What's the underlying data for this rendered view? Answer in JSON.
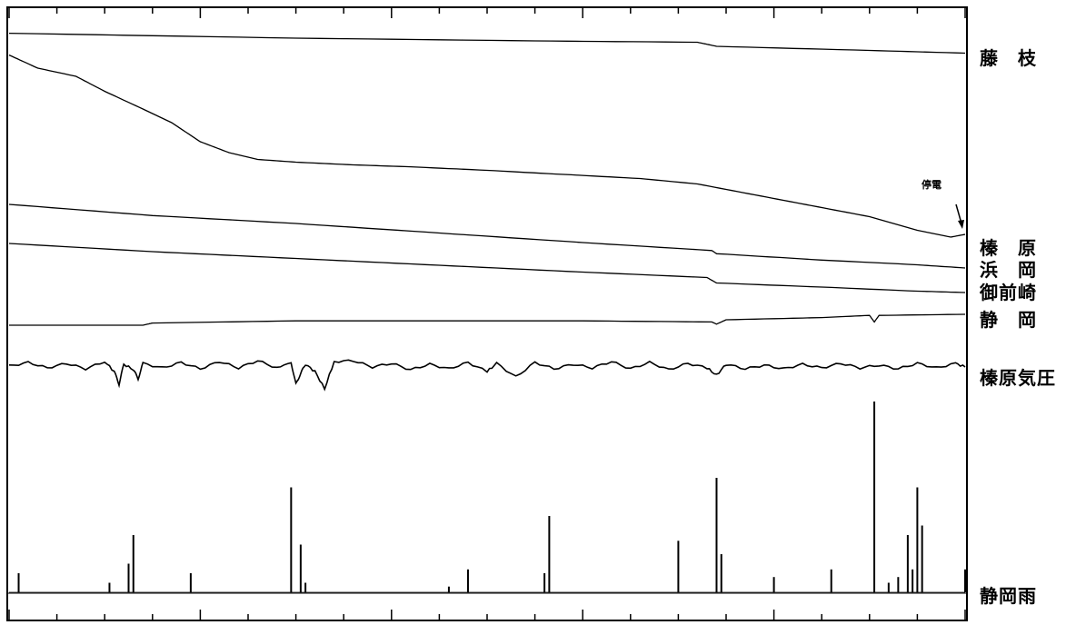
{
  "chart_data": {
    "type": "line",
    "title": "",
    "xlabel": "",
    "ylabel": "",
    "grid": false,
    "series": [
      {
        "name": "藤　枝",
        "kind": "trace",
        "values": [
          [
            0,
            0.02
          ],
          [
            0.3,
            0.2
          ],
          [
            0.55,
            0.3
          ],
          [
            0.72,
            0.35
          ],
          [
            0.74,
            0.5
          ],
          [
            0.9,
            0.65
          ],
          [
            1,
            0.75
          ]
        ]
      },
      {
        "name": "榛　原",
        "kind": "trace",
        "values": [
          [
            0,
            0.02
          ],
          [
            0.03,
            0.5
          ],
          [
            0.07,
            0.8
          ],
          [
            0.1,
            1.35
          ],
          [
            0.14,
            2.0
          ],
          [
            0.17,
            2.5
          ],
          [
            0.2,
            3.2
          ],
          [
            0.23,
            3.6
          ],
          [
            0.26,
            3.85
          ],
          [
            0.3,
            3.95
          ],
          [
            0.36,
            4.05
          ],
          [
            0.42,
            4.12
          ],
          [
            0.5,
            4.25
          ],
          [
            0.58,
            4.4
          ],
          [
            0.66,
            4.55
          ],
          [
            0.72,
            4.75
          ],
          [
            0.78,
            5.15
          ],
          [
            0.84,
            5.55
          ],
          [
            0.9,
            5.95
          ],
          [
            0.95,
            6.45
          ],
          [
            0.985,
            6.7
          ],
          [
            1.0,
            6.6
          ]
        ]
      },
      {
        "name": "浜　岡",
        "kind": "trace",
        "values": [
          [
            0,
            0
          ],
          [
            0.15,
            0.35
          ],
          [
            0.3,
            0.6
          ],
          [
            0.45,
            0.9
          ],
          [
            0.6,
            1.2
          ],
          [
            0.735,
            1.45
          ],
          [
            0.74,
            1.55
          ],
          [
            0.85,
            1.75
          ],
          [
            0.95,
            1.9
          ],
          [
            1,
            2.0
          ]
        ]
      },
      {
        "name": "御前崎",
        "kind": "trace",
        "values": [
          [
            0,
            0
          ],
          [
            0.15,
            0.3
          ],
          [
            0.3,
            0.55
          ],
          [
            0.45,
            0.8
          ],
          [
            0.6,
            1.05
          ],
          [
            0.73,
            1.25
          ],
          [
            0.74,
            1.45
          ],
          [
            0.85,
            1.6
          ],
          [
            0.95,
            1.75
          ],
          [
            1,
            1.8
          ]
        ]
      },
      {
        "name": "静　岡",
        "kind": "trace",
        "values": [
          [
            0,
            0
          ],
          [
            0.14,
            0.0
          ],
          [
            0.15,
            -0.1
          ],
          [
            0.3,
            -0.2
          ],
          [
            0.45,
            -0.2
          ],
          [
            0.6,
            -0.2
          ],
          [
            0.735,
            -0.15
          ],
          [
            0.74,
            -0.05
          ],
          [
            0.75,
            -0.25
          ],
          [
            0.85,
            -0.35
          ],
          [
            0.9,
            -0.45
          ],
          [
            0.905,
            -0.15
          ],
          [
            0.91,
            -0.45
          ],
          [
            1,
            -0.5
          ]
        ]
      },
      {
        "name": "榛原気圧",
        "kind": "pressure",
        "values": [
          [
            0.0,
            0
          ],
          [
            0.02,
            -4
          ],
          [
            0.04,
            2
          ],
          [
            0.06,
            -3
          ],
          [
            0.08,
            3
          ],
          [
            0.1,
            -5
          ],
          [
            0.11,
            6
          ],
          [
            0.115,
            20
          ],
          [
            0.12,
            -2
          ],
          [
            0.13,
            4
          ],
          [
            0.135,
            14
          ],
          [
            0.14,
            -3
          ],
          [
            0.16,
            2
          ],
          [
            0.18,
            -4
          ],
          [
            0.2,
            3
          ],
          [
            0.22,
            -5
          ],
          [
            0.24,
            2
          ],
          [
            0.26,
            -6
          ],
          [
            0.28,
            2
          ],
          [
            0.295,
            -4
          ],
          [
            0.3,
            20
          ],
          [
            0.305,
            8
          ],
          [
            0.31,
            -2
          ],
          [
            0.32,
            6
          ],
          [
            0.33,
            25
          ],
          [
            0.34,
            -5
          ],
          [
            0.36,
            -6
          ],
          [
            0.38,
            1
          ],
          [
            0.4,
            -3
          ],
          [
            0.42,
            4
          ],
          [
            0.44,
            -2
          ],
          [
            0.46,
            3
          ],
          [
            0.48,
            -4
          ],
          [
            0.5,
            6
          ],
          [
            0.51,
            -3
          ],
          [
            0.53,
            12
          ],
          [
            0.55,
            -4
          ],
          [
            0.57,
            3
          ],
          [
            0.59,
            -2
          ],
          [
            0.61,
            2
          ],
          [
            0.63,
            -5
          ],
          [
            0.65,
            3
          ],
          [
            0.67,
            -4
          ],
          [
            0.69,
            4
          ],
          [
            0.71,
            -3
          ],
          [
            0.73,
            2
          ],
          [
            0.74,
            10
          ],
          [
            0.75,
            -2
          ],
          [
            0.77,
            3
          ],
          [
            0.79,
            -1
          ],
          [
            0.81,
            3
          ],
          [
            0.83,
            -2
          ],
          [
            0.85,
            2
          ],
          [
            0.87,
            -3
          ],
          [
            0.89,
            2
          ],
          [
            0.91,
            -1
          ],
          [
            0.93,
            3
          ],
          [
            0.95,
            -3
          ],
          [
            0.97,
            2
          ],
          [
            0.99,
            -3
          ],
          [
            1.0,
            1
          ]
        ]
      },
      {
        "name": "静岡雨",
        "kind": "rain",
        "values": [
          [
            0.01,
            0.1
          ],
          [
            0.105,
            0.05
          ],
          [
            0.125,
            0.15
          ],
          [
            0.13,
            0.3
          ],
          [
            0.19,
            0.1
          ],
          [
            0.295,
            0.55
          ],
          [
            0.305,
            0.25
          ],
          [
            0.31,
            0.05
          ],
          [
            0.46,
            0.03
          ],
          [
            0.48,
            0.12
          ],
          [
            0.56,
            0.1
          ],
          [
            0.565,
            0.4
          ],
          [
            0.7,
            0.27
          ],
          [
            0.74,
            0.6
          ],
          [
            0.745,
            0.2
          ],
          [
            0.8,
            0.08
          ],
          [
            0.86,
            0.12
          ],
          [
            0.905,
            1.0
          ],
          [
            0.92,
            0.05
          ],
          [
            0.93,
            0.08
          ],
          [
            0.94,
            0.3
          ],
          [
            0.945,
            0.12
          ],
          [
            0.95,
            0.55
          ],
          [
            0.955,
            0.35
          ],
          [
            1.0,
            0.12
          ]
        ]
      }
    ]
  },
  "labels": {
    "fujieda": "藤　枝",
    "haibara": "榛　原",
    "hamaoka": "浜　岡",
    "omaezaki": "御前崎",
    "shizuoka": "静　岡",
    "haibara_pressure": "榛原気圧",
    "shizuoka_rain": "静岡雨"
  },
  "annotation": "停電"
}
